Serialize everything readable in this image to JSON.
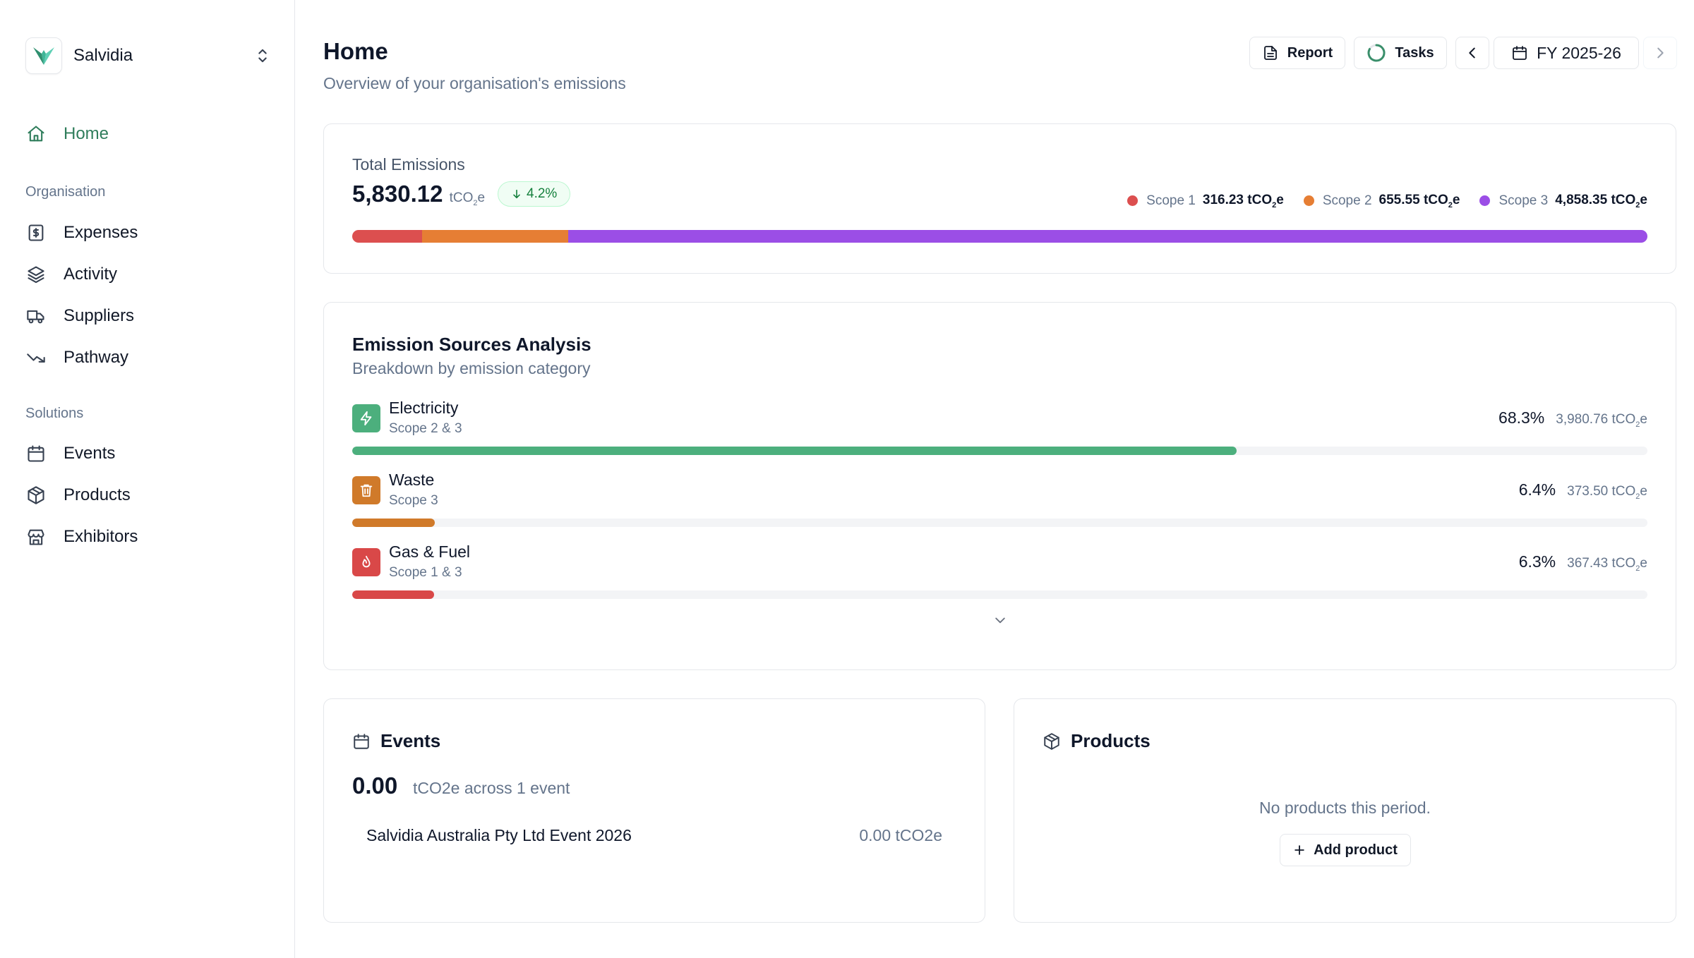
{
  "sidebar": {
    "org_name": "Salvidia",
    "home_label": "Home",
    "groups": [
      {
        "label": "Organisation",
        "items": [
          "Expenses",
          "Activity",
          "Suppliers",
          "Pathway"
        ]
      },
      {
        "label": "Solutions",
        "items": [
          "Events",
          "Products",
          "Exhibitors"
        ]
      }
    ]
  },
  "header": {
    "title": "Home",
    "subtitle": "Overview of your organisation's emissions",
    "report_label": "Report",
    "tasks_label": "Tasks",
    "period_label": "FY 2025-26"
  },
  "total": {
    "label": "Total Emissions",
    "value": "5,830.12",
    "unit": "tCO",
    "unit_sub": "2",
    "unit_tail": "e",
    "change": "4.2%",
    "scopes": [
      {
        "name": "Scope 1",
        "value": "316.23 tCO",
        "fraction": 0.0542,
        "color": "#dc4f4f"
      },
      {
        "name": "Scope 2",
        "value": "655.55 tCO",
        "fraction": 0.1124,
        "color": "#e67e34"
      },
      {
        "name": "Scope 3",
        "value": "4,858.35 tCO",
        "fraction": 0.8334,
        "color": "#9b4ee6"
      }
    ]
  },
  "sources": {
    "title": "Emission Sources Analysis",
    "subtitle": "Breakdown by emission category",
    "items": [
      {
        "name": "Electricity",
        "scope": "Scope 2 & 3",
        "pct": "68.3%",
        "value": "3,980.76 tCO",
        "fraction": 0.683,
        "color": "#4caf7d",
        "icon": "bolt-icon"
      },
      {
        "name": "Waste",
        "scope": "Scope 3",
        "pct": "6.4%",
        "value": "373.50 tCO",
        "fraction": 0.064,
        "color": "#d07a2a",
        "icon": "trash-icon"
      },
      {
        "name": "Gas & Fuel",
        "scope": "Scope 1 & 3",
        "pct": "6.3%",
        "value": "367.43 tCO",
        "fraction": 0.063,
        "color": "#d94848",
        "icon": "flame-icon"
      }
    ]
  },
  "events": {
    "title": "Events",
    "value": "0.00",
    "across": "tCO2e across 1 event",
    "rows": [
      {
        "name": "Salvidia Australia Pty Ltd Event 2026",
        "value": "0.00 tCO2e"
      }
    ]
  },
  "products": {
    "title": "Products",
    "empty": "No products this period.",
    "add_label": "Add product"
  }
}
